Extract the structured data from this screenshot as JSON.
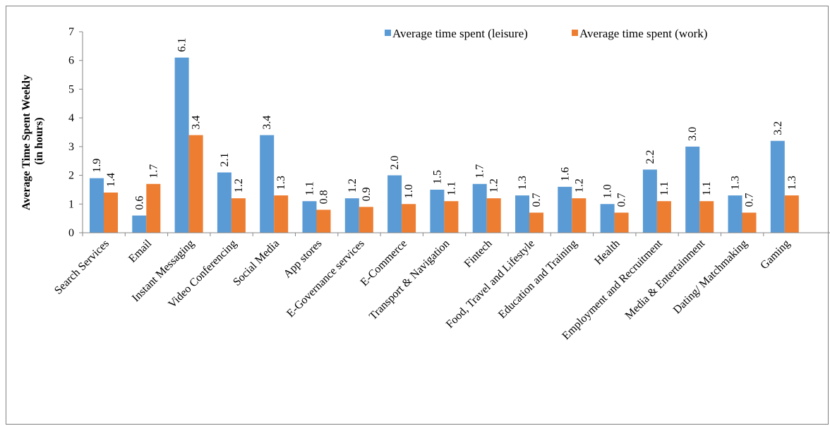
{
  "chart_data": {
    "type": "bar",
    "title": "",
    "ylabel": "Average Time Spent Weekly\n(in hours)",
    "xlabel": "",
    "ylim": [
      0,
      7
    ],
    "yticks": [
      "0",
      "1",
      "2",
      "3",
      "4",
      "5",
      "6",
      "7"
    ],
    "grid": false,
    "legend_position": "top-right",
    "categories": [
      "Search Services",
      "Email",
      "Instant Messaging",
      "Video Conferencing",
      "Social Media",
      "App stores",
      "E-Governance services",
      "E-Commerce",
      "Transport & Navigation",
      "Fintech",
      "Food, Travel and Lifestyle",
      "Education and Training",
      "Health",
      "Employment and Recruitment",
      "Media & Entertainment",
      "Dating/ Matchmaking",
      "Gaming"
    ],
    "series": [
      {
        "name": "Average time spent (leisure)",
        "color": "#5b9bd5",
        "values": [
          1.9,
          0.6,
          6.1,
          2.1,
          3.4,
          1.1,
          1.2,
          2.0,
          1.5,
          1.7,
          1.3,
          1.6,
          1.0,
          2.2,
          3.0,
          1.3,
          3.2
        ],
        "labels": [
          "1.9",
          "0.6",
          "6.1",
          "2.1",
          "3.4",
          "1.1",
          "1.2",
          "2.0",
          "1.5",
          "1.7",
          "1.3",
          "1.6",
          "1.0",
          "2.2",
          "3.0",
          "1.3",
          "3.2"
        ]
      },
      {
        "name": "Average time spent (work)",
        "color": "#ed7d31",
        "values": [
          1.4,
          1.7,
          3.4,
          1.2,
          1.3,
          0.8,
          0.9,
          1.0,
          1.1,
          1.2,
          0.7,
          1.2,
          0.7,
          1.1,
          1.1,
          0.7,
          1.3
        ],
        "labels": [
          "1.4",
          "1.7",
          "3.4",
          "1.2",
          "1.3",
          "0.8",
          "0.9",
          "1.0",
          "1.1",
          "1.2",
          "0.7",
          "1.2",
          "0.7",
          "1.1",
          "1.1",
          "0.7",
          "1.3"
        ]
      }
    ]
  }
}
